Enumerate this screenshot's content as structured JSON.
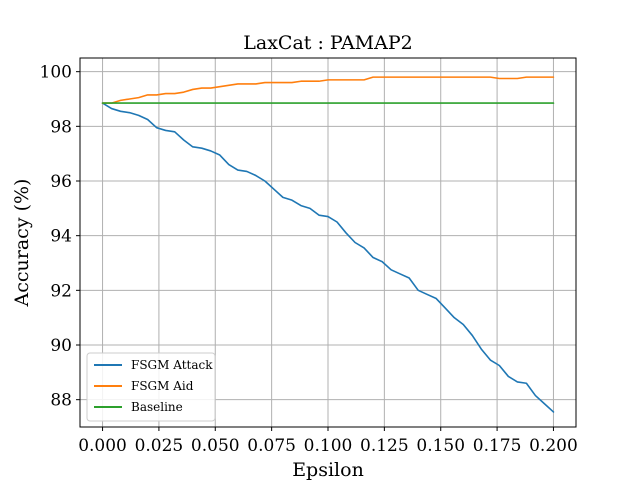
{
  "chart_data": {
    "type": "line",
    "title": "LaxCat : PAMAP2",
    "xlabel": "Epsilon",
    "ylabel": "Accuracy (%)",
    "xlim": [
      -0.01,
      0.21
    ],
    "ylim": [
      87.0,
      100.5
    ],
    "xticks": [
      0.0,
      0.025,
      0.05,
      0.075,
      0.1,
      0.125,
      0.15,
      0.175,
      0.2
    ],
    "xtick_labels": [
      "0.000",
      "0.025",
      "0.050",
      "0.075",
      "0.100",
      "0.125",
      "0.150",
      "0.175",
      "0.200"
    ],
    "yticks": [
      88,
      90,
      92,
      94,
      96,
      98,
      100
    ],
    "ytick_labels": [
      "88",
      "90",
      "92",
      "94",
      "96",
      "98",
      "100"
    ],
    "grid": true,
    "legend_position": "lower-left",
    "x": [
      0.0,
      0.004,
      0.008,
      0.012,
      0.016,
      0.02,
      0.024,
      0.028,
      0.032,
      0.036,
      0.04,
      0.044,
      0.048,
      0.052,
      0.056,
      0.06,
      0.064,
      0.068,
      0.072,
      0.076,
      0.08,
      0.084,
      0.088,
      0.092,
      0.096,
      0.1,
      0.104,
      0.108,
      0.112,
      0.116,
      0.12,
      0.124,
      0.128,
      0.132,
      0.136,
      0.14,
      0.144,
      0.148,
      0.152,
      0.156,
      0.16,
      0.164,
      0.168,
      0.172,
      0.176,
      0.18,
      0.184,
      0.188,
      0.192,
      0.196,
      0.2
    ],
    "series": [
      {
        "name": "FSGM Attack",
        "color": "#1f77b4",
        "values": [
          98.85,
          98.65,
          98.55,
          98.5,
          98.4,
          98.25,
          97.95,
          97.85,
          97.8,
          97.5,
          97.25,
          97.2,
          97.1,
          96.95,
          96.6,
          96.4,
          96.35,
          96.2,
          96.0,
          95.7,
          95.4,
          95.3,
          95.1,
          95.0,
          94.75,
          94.7,
          94.5,
          94.1,
          93.75,
          93.55,
          93.2,
          93.05,
          92.75,
          92.6,
          92.45,
          92.0,
          91.85,
          91.7,
          91.35,
          91.0,
          90.75,
          90.35,
          89.85,
          89.45,
          89.25,
          88.85,
          88.65,
          88.6,
          88.15,
          87.85,
          87.55
        ]
      },
      {
        "name": "FSGM Aid",
        "color": "#ff7f0e",
        "values": [
          98.85,
          98.85,
          98.95,
          99.0,
          99.05,
          99.15,
          99.15,
          99.2,
          99.2,
          99.25,
          99.35,
          99.4,
          99.4,
          99.45,
          99.5,
          99.55,
          99.55,
          99.55,
          99.6,
          99.6,
          99.6,
          99.6,
          99.65,
          99.65,
          99.65,
          99.7,
          99.7,
          99.7,
          99.7,
          99.7,
          99.8,
          99.8,
          99.8,
          99.8,
          99.8,
          99.8,
          99.8,
          99.8,
          99.8,
          99.8,
          99.8,
          99.8,
          99.8,
          99.8,
          99.75,
          99.75,
          99.75,
          99.8,
          99.8,
          99.8,
          99.8
        ]
      },
      {
        "name": "Baseline",
        "color": "#2ca02c",
        "values": [
          98.85,
          98.85,
          98.85,
          98.85,
          98.85,
          98.85,
          98.85,
          98.85,
          98.85,
          98.85,
          98.85,
          98.85,
          98.85,
          98.85,
          98.85,
          98.85,
          98.85,
          98.85,
          98.85,
          98.85,
          98.85,
          98.85,
          98.85,
          98.85,
          98.85,
          98.85,
          98.85,
          98.85,
          98.85,
          98.85,
          98.85,
          98.85,
          98.85,
          98.85,
          98.85,
          98.85,
          98.85,
          98.85,
          98.85,
          98.85,
          98.85,
          98.85,
          98.85,
          98.85,
          98.85,
          98.85,
          98.85,
          98.85,
          98.85,
          98.85,
          98.85
        ]
      }
    ]
  }
}
